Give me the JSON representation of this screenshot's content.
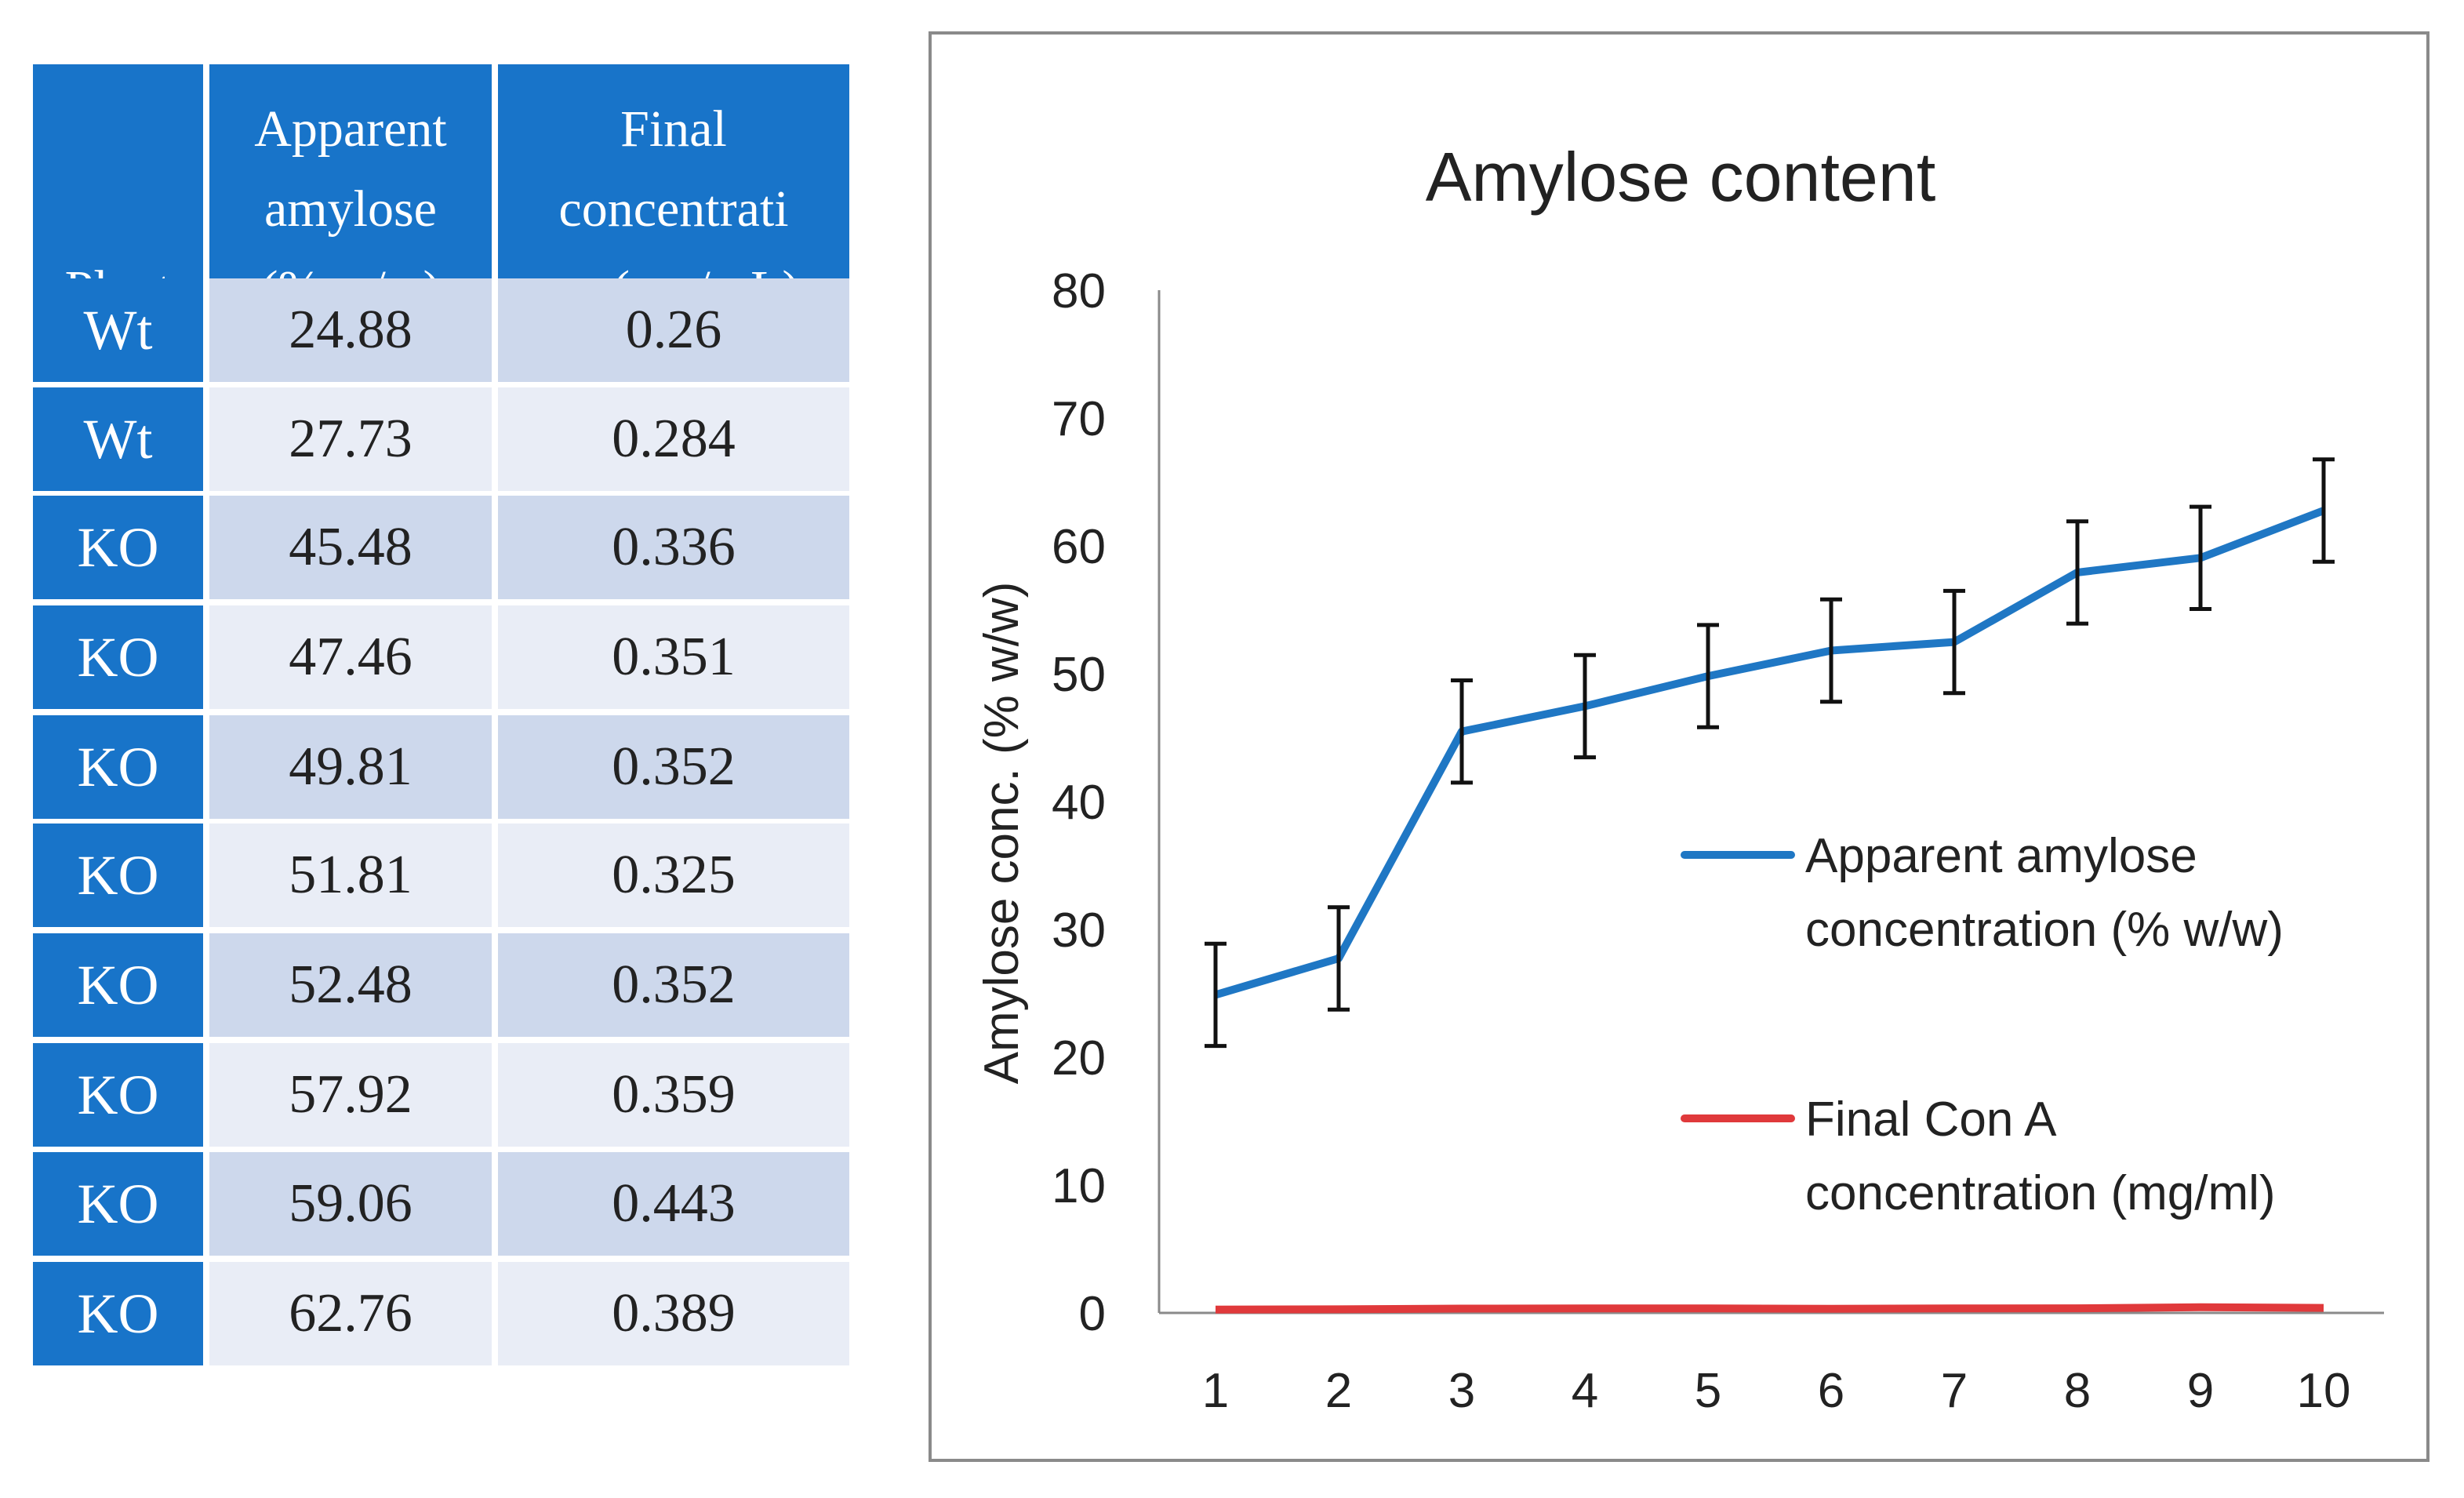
{
  "table": {
    "headers": {
      "plant": "Plant",
      "apparent_lines": [
        "Apparent",
        "amylose",
        "(% w/w)"
      ],
      "final_lines": [
        "Final",
        "concentrati",
        "on (mg/mL)"
      ]
    },
    "rows": [
      {
        "plant": "Wt",
        "apparent": "24.88",
        "final": "0.26"
      },
      {
        "plant": "Wt",
        "apparent": "27.73",
        "final": "0.284"
      },
      {
        "plant": "KO",
        "apparent": "45.48",
        "final": "0.336"
      },
      {
        "plant": "KO",
        "apparent": "47.46",
        "final": "0.351"
      },
      {
        "plant": "KO",
        "apparent": "49.81",
        "final": "0.352"
      },
      {
        "plant": "KO",
        "apparent": "51.81",
        "final": "0.325"
      },
      {
        "plant": "KO",
        "apparent": "52.48",
        "final": "0.352"
      },
      {
        "plant": "KO",
        "apparent": "57.92",
        "final": "0.359"
      },
      {
        "plant": "KO",
        "apparent": "59.06",
        "final": "0.443"
      },
      {
        "plant": "KO",
        "apparent": "62.76",
        "final": "0.389"
      }
    ]
  },
  "chart_data": {
    "type": "line",
    "title": "Amylose content",
    "xlabel": "",
    "ylabel": "Amylose conc. (% w/w)",
    "x": [
      1,
      2,
      3,
      4,
      5,
      6,
      7,
      8,
      9,
      10
    ],
    "ylim": [
      0,
      80
    ],
    "yticks": [
      0,
      10,
      20,
      30,
      40,
      50,
      60,
      70,
      80
    ],
    "grid": false,
    "legend_position": "right",
    "series": [
      {
        "name_lines": [
          "Apparent amylose",
          "concentration (% w/w)"
        ],
        "color": "#1f77c4",
        "values": [
          24.88,
          27.73,
          45.48,
          47.46,
          49.81,
          51.81,
          52.48,
          57.92,
          59.06,
          62.76
        ],
        "error": [
          4,
          4,
          4,
          4,
          4,
          4,
          4,
          4,
          4,
          4
        ]
      },
      {
        "name_lines": [
          "Final Con A",
          "concentration (mg/ml)"
        ],
        "color": "#e0393b",
        "values": [
          0.26,
          0.284,
          0.336,
          0.351,
          0.352,
          0.325,
          0.352,
          0.359,
          0.443,
          0.389
        ]
      }
    ]
  },
  "colors": {
    "table_header": "#1874c9",
    "row_odd": "#cdd8ec",
    "row_even": "#e9edf6",
    "frame": "#8a8a8a"
  }
}
